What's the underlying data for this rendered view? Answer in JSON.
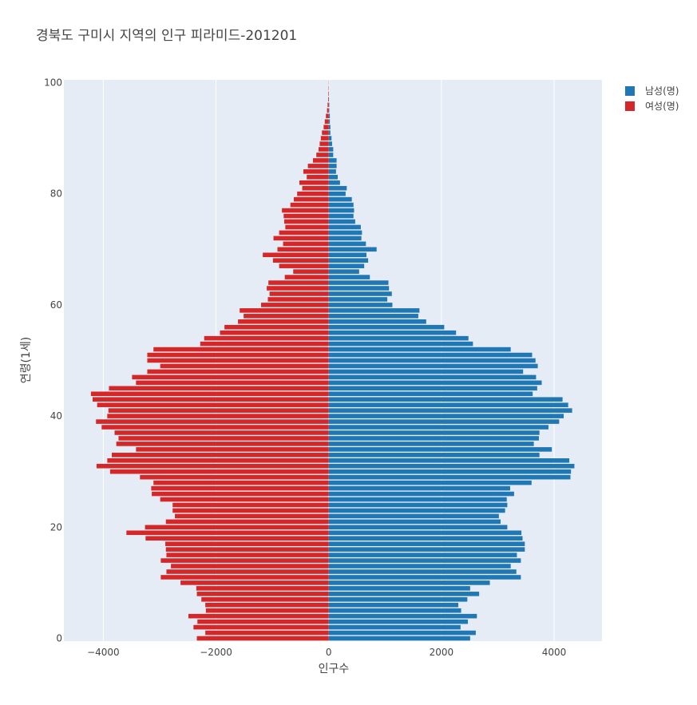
{
  "chart_data": {
    "type": "bar",
    "orientation": "horizontal",
    "title": "경북도 구미시 지역의 인구 피라미드-201201",
    "xlabel": "인구수",
    "ylabel": "연령(1세)",
    "xlim": [
      -4700,
      4850
    ],
    "ylim": [
      -0.5,
      100.5
    ],
    "xticks": [
      -4000,
      -2000,
      0,
      2000,
      4000
    ],
    "xtick_labels": [
      "−4000",
      "−2000",
      "0",
      "2000",
      "4000"
    ],
    "yticks": [
      0,
      20,
      40,
      60,
      80,
      100
    ],
    "ytick_labels": [
      "0",
      "20",
      "40",
      "60",
      "80",
      "100"
    ],
    "grid": true,
    "legend_position": "top-right",
    "ages": [
      0,
      1,
      2,
      3,
      4,
      5,
      6,
      7,
      8,
      9,
      10,
      11,
      12,
      13,
      14,
      15,
      16,
      17,
      18,
      19,
      20,
      21,
      22,
      23,
      24,
      25,
      26,
      27,
      28,
      29,
      30,
      31,
      32,
      33,
      34,
      35,
      36,
      37,
      38,
      39,
      40,
      41,
      42,
      43,
      44,
      45,
      46,
      47,
      48,
      49,
      50,
      51,
      52,
      53,
      54,
      55,
      56,
      57,
      58,
      59,
      60,
      61,
      62,
      63,
      64,
      65,
      66,
      67,
      68,
      69,
      70,
      71,
      72,
      73,
      74,
      75,
      76,
      77,
      78,
      79,
      80,
      81,
      82,
      83,
      84,
      85,
      86,
      87,
      88,
      89,
      90,
      91,
      92,
      93,
      94,
      95,
      96,
      97,
      98,
      99,
      100
    ],
    "series": [
      {
        "name": "남성(명)",
        "color": "#1f77b4",
        "values": [
          2510,
          2610,
          2340,
          2470,
          2630,
          2350,
          2300,
          2460,
          2670,
          2510,
          2860,
          3410,
          3330,
          3230,
          3410,
          3340,
          3480,
          3480,
          3440,
          3420,
          3170,
          3050,
          3020,
          3130,
          3170,
          3160,
          3290,
          3220,
          3600,
          4290,
          4300,
          4360,
          4270,
          3740,
          3960,
          3640,
          3730,
          3740,
          3900,
          4090,
          4170,
          4320,
          4250,
          4150,
          3620,
          3700,
          3780,
          3680,
          3450,
          3710,
          3670,
          3610,
          3230,
          2560,
          2480,
          2260,
          2050,
          1730,
          1590,
          1610,
          1130,
          1040,
          1120,
          1070,
          1060,
          730,
          540,
          630,
          700,
          670,
          850,
          660,
          580,
          590,
          570,
          470,
          440,
          450,
          440,
          410,
          300,
          320,
          200,
          160,
          130,
          140,
          140,
          80,
          80,
          60,
          50,
          30,
          30,
          20,
          20,
          10,
          10,
          5,
          3,
          2,
          1
        ]
      },
      {
        "name": "여성(명)",
        "color": "#d62728",
        "values": [
          -2340,
          -2190,
          -2400,
          -2330,
          -2490,
          -2180,
          -2190,
          -2260,
          -2340,
          -2350,
          -2630,
          -2980,
          -2880,
          -2800,
          -2980,
          -2880,
          -2890,
          -2900,
          -3250,
          -3590,
          -3260,
          -2890,
          -2730,
          -2770,
          -2770,
          -2990,
          -3140,
          -3150,
          -3110,
          -3350,
          -3880,
          -4120,
          -3930,
          -3850,
          -3420,
          -3770,
          -3730,
          -3800,
          -4030,
          -4130,
          -3930,
          -3910,
          -4110,
          -4190,
          -4220,
          -3900,
          -3420,
          -3490,
          -3220,
          -2990,
          -3220,
          -3220,
          -3110,
          -2280,
          -2210,
          -1930,
          -1850,
          -1610,
          -1510,
          -1580,
          -1200,
          -1080,
          -1050,
          -1100,
          -1070,
          -780,
          -630,
          -880,
          -990,
          -1170,
          -910,
          -810,
          -980,
          -880,
          -770,
          -790,
          -800,
          -830,
          -680,
          -620,
          -560,
          -470,
          -520,
          -390,
          -450,
          -370,
          -280,
          -220,
          -180,
          -160,
          -140,
          -120,
          -90,
          -70,
          -50,
          -30,
          -20,
          -10,
          -8,
          -5,
          -3
        ]
      }
    ]
  }
}
